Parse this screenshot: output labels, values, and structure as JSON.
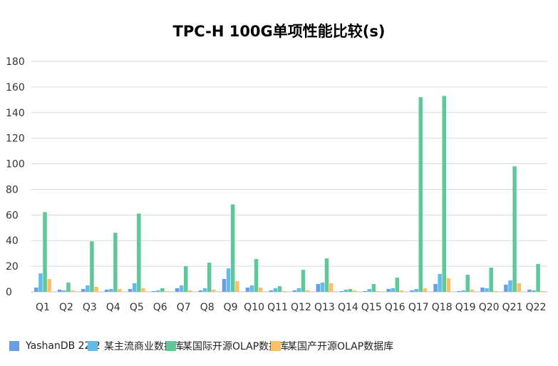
{
  "chart_data": {
    "type": "bar",
    "title": "TPC-H 100G单项性能比较(s)",
    "xlabel": "",
    "ylabel": "",
    "ylim": [
      0,
      180
    ],
    "yticks": [
      0,
      20,
      40,
      60,
      80,
      100,
      120,
      140,
      160,
      180
    ],
    "grid": true,
    "legend_position": "bottom",
    "categories": [
      "Q1",
      "Q2",
      "Q3",
      "Q4",
      "Q5",
      "Q6",
      "Q7",
      "Q8",
      "Q9",
      "Q10",
      "Q11",
      "Q12",
      "Q13",
      "Q14",
      "Q15",
      "Q16",
      "Q17",
      "Q18",
      "Q19",
      "Q20",
      "Q21",
      "Q22"
    ],
    "series": [
      {
        "name": "YashanDB 22.2",
        "color": "#6a9de3",
        "values": [
          3.3,
          1.7,
          2.2,
          1.7,
          2.2,
          0.6,
          2.8,
          1.1,
          10,
          3.3,
          1.1,
          1.1,
          6.1,
          0.6,
          0.6,
          2.2,
          1.1,
          6.1,
          0.6,
          3.3,
          5.6,
          1.7
        ]
      },
      {
        "name": "某主流商业数据库",
        "color": "#62bbe8",
        "values": [
          14.4,
          1.1,
          5,
          2.2,
          6.7,
          1.1,
          5,
          2.8,
          18.3,
          5,
          2.8,
          2.8,
          7.2,
          1.7,
          2.2,
          2.8,
          2.2,
          13.9,
          1.1,
          2.8,
          8.9,
          1.1
        ]
      },
      {
        "name": "某国际开源OLAP数据库",
        "color": "#5ec899",
        "values": [
          62.2,
          7.2,
          39.4,
          46.1,
          61.1,
          2.8,
          20,
          22.8,
          68.3,
          25.6,
          4.4,
          17.2,
          26.1,
          2.2,
          6.1,
          11.1,
          152,
          153,
          13.3,
          18.9,
          98,
          21.7
        ]
      },
      {
        "name": "某国产开源OLAP数据库",
        "color": "#fbc066",
        "values": [
          10,
          1.1,
          3.9,
          2.2,
          2.8,
          0.6,
          1.1,
          1.7,
          8.3,
          3.3,
          0.6,
          1.1,
          6.7,
          1.1,
          0.6,
          1.1,
          2.8,
          10.6,
          1.7,
          0.6,
          6.7,
          0.6
        ]
      }
    ]
  }
}
